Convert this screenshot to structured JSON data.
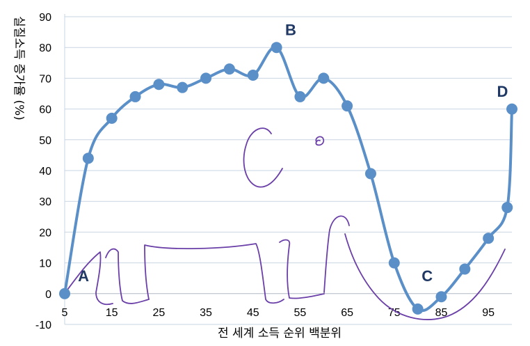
{
  "chart_data": {
    "type": "line",
    "xlabel": "전 세계 소득 순위 백분위",
    "ylabel": "실질소득 증가율 (%)",
    "x_ticks": [
      5,
      15,
      25,
      35,
      45,
      55,
      65,
      75,
      85,
      95
    ],
    "y_ticks": [
      90,
      80,
      70,
      60,
      50,
      40,
      30,
      20,
      10,
      0,
      -10
    ],
    "xlim": [
      5,
      100
    ],
    "ylim": [
      -10,
      90
    ],
    "grid": "horizontal",
    "series": [
      {
        "x": [
          5,
          10,
          15,
          20,
          25,
          30,
          35,
          40,
          45,
          50,
          55,
          60,
          65,
          70,
          75,
          80,
          85,
          90,
          95,
          99,
          100
        ],
        "y": [
          0,
          44,
          57,
          64,
          68,
          67,
          70,
          73,
          71,
          80,
          64,
          70,
          61,
          39,
          10,
          -5,
          -1,
          8,
          18,
          28,
          60
        ],
        "color": "#5b8fc7"
      }
    ],
    "annotations": [
      {
        "text": "A",
        "x": 9,
        "y": 4
      },
      {
        "text": "B",
        "x": 53,
        "y": 84
      },
      {
        "text": "C",
        "x": 82,
        "y": 4
      },
      {
        "text": "D",
        "x": 98,
        "y": 64
      }
    ]
  }
}
